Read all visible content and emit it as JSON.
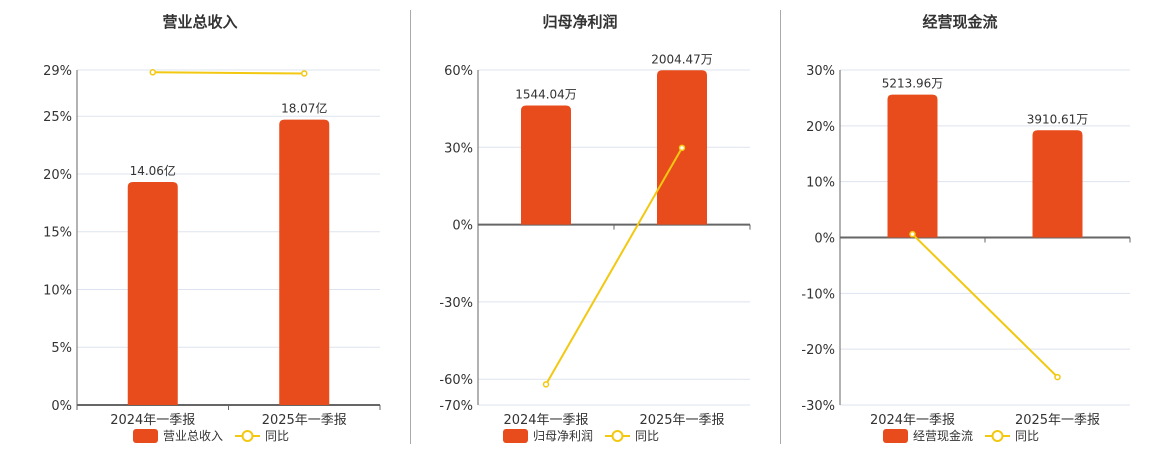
{
  "colors": {
    "bar": "#E84C1C",
    "line": "#F2C811",
    "grid": "#DDE3EE",
    "axis": "#666666"
  },
  "chart_data": [
    {
      "type": "bar+line",
      "title": "营业总收入",
      "categories": [
        "2024年一季报",
        "2025年一季报"
      ],
      "series": [
        {
          "name": "营业总收入",
          "type": "bar",
          "values": [
            14.06,
            18.07
          ],
          "unit": "亿",
          "labels": [
            "14.06亿",
            "18.07亿"
          ]
        },
        {
          "name": "同比",
          "type": "line",
          "values": [
            28.8,
            28.7
          ],
          "unit": "%"
        }
      ],
      "yticks": [
        "0%",
        "5%",
        "10%",
        "15%",
        "20%",
        "25%",
        "29%"
      ],
      "ylim": [
        0,
        29
      ],
      "bar_pct_heights": [
        19.3,
        24.7
      ],
      "legend": [
        "营业总收入",
        "同比"
      ]
    },
    {
      "type": "bar+line",
      "title": "归母净利润",
      "categories": [
        "2024年一季报",
        "2025年一季报"
      ],
      "series": [
        {
          "name": "归母净利润",
          "type": "bar",
          "values": [
            1544.04,
            2004.47
          ],
          "unit": "万",
          "labels": [
            "1544.04万",
            "2004.47万"
          ]
        },
        {
          "name": "同比",
          "type": "line",
          "values": [
            -62.0,
            29.8
          ],
          "unit": "%"
        }
      ],
      "yticks": [
        "-70%",
        "-60%",
        "-30%",
        "0%",
        "30%",
        "60%"
      ],
      "ylim": [
        -70,
        60
      ],
      "bar_pct_heights": [
        46.2,
        59.9
      ],
      "legend": [
        "归母净利润",
        "同比"
      ]
    },
    {
      "type": "bar+line",
      "title": "经营现金流",
      "categories": [
        "2024年一季报",
        "2025年一季报"
      ],
      "series": [
        {
          "name": "经营现金流",
          "type": "bar",
          "values": [
            5213.96,
            3910.61
          ],
          "unit": "万",
          "labels": [
            "5213.96万",
            "3910.61万"
          ]
        },
        {
          "name": "同比",
          "type": "line",
          "values": [
            0.6,
            -25.0
          ],
          "unit": "%"
        }
      ],
      "yticks": [
        "-30%",
        "-20%",
        "-10%",
        "0%",
        "10%",
        "20%",
        "30%"
      ],
      "ylim": [
        -30,
        30
      ],
      "bar_pct_heights": [
        25.6,
        19.2
      ],
      "legend": [
        "经营现金流",
        "同比"
      ]
    }
  ]
}
